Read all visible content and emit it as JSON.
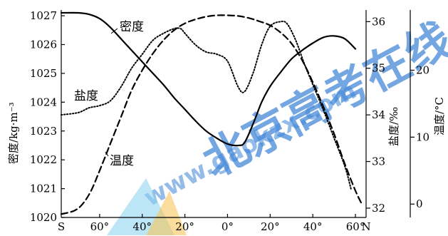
{
  "chart_data": {
    "type": "line",
    "x": [
      -70,
      -60,
      -50,
      -40,
      -30,
      -20,
      -10,
      0,
      10,
      20,
      30,
      40,
      50,
      60
    ],
    "xlim": [
      -78,
      65
    ],
    "x_ticks": [
      {
        "value": -78,
        "label": "S"
      },
      {
        "value": -60,
        "label": "60°"
      },
      {
        "value": -40,
        "label": "40°"
      },
      {
        "value": -20,
        "label": "20°"
      },
      {
        "value": 0,
        "label": "0°"
      },
      {
        "value": 20,
        "label": "20°"
      },
      {
        "value": 40,
        "label": "40°"
      },
      {
        "value": 60,
        "label": "60°"
      },
      {
        "value": 65,
        "label": "N"
      }
    ],
    "axes": {
      "density": {
        "label": "密度/kg·m⁻³",
        "ylim": [
          1020,
          1027.2
        ],
        "ticks": [
          "1020",
          "1021",
          "1022",
          "1023",
          "1024",
          "1025",
          "1026",
          "1027"
        ]
      },
      "salinity": {
        "label": "盐度/‰",
        "ylim": [
          31.8,
          36.25
        ],
        "ticks": [
          "32",
          "33",
          "34",
          "35",
          "36"
        ]
      },
      "temperature": {
        "label": "温度/°C",
        "ylim": [
          -2,
          29
        ],
        "ticks": [
          "0",
          "10",
          "20"
        ]
      }
    },
    "series": [
      {
        "name": "密度",
        "axis": "density",
        "style": "solid",
        "points": [
          [
            -78,
            1027.1
          ],
          [
            -70,
            1027.1
          ],
          [
            -65,
            1027.05
          ],
          [
            -60,
            1026.9
          ],
          [
            -55,
            1026.6
          ],
          [
            -50,
            1026.2
          ],
          [
            -45,
            1025.8
          ],
          [
            -40,
            1025.4
          ],
          [
            -35,
            1025.0
          ],
          [
            -30,
            1024.6
          ],
          [
            -25,
            1024.15
          ],
          [
            -20,
            1023.75
          ],
          [
            -15,
            1023.35
          ],
          [
            -10,
            1023.0
          ],
          [
            -5,
            1022.75
          ],
          [
            0,
            1022.55
          ],
          [
            5,
            1022.5
          ],
          [
            8,
            1022.6
          ],
          [
            12,
            1023.25
          ],
          [
            16,
            1024.0
          ],
          [
            20,
            1024.55
          ],
          [
            25,
            1025.05
          ],
          [
            30,
            1025.5
          ],
          [
            35,
            1025.8
          ],
          [
            40,
            1026.05
          ],
          [
            45,
            1026.25
          ],
          [
            50,
            1026.3
          ],
          [
            55,
            1026.2
          ],
          [
            60,
            1025.85
          ]
        ]
      },
      {
        "name": "盐度",
        "axis": "salinity",
        "style": "dotted",
        "points": [
          [
            -78,
            34.0
          ],
          [
            -70,
            34.05
          ],
          [
            -65,
            34.15
          ],
          [
            -60,
            34.2
          ],
          [
            -55,
            34.3
          ],
          [
            -50,
            34.6
          ],
          [
            -45,
            35.0
          ],
          [
            -40,
            35.3
          ],
          [
            -35,
            35.6
          ],
          [
            -30,
            35.75
          ],
          [
            -25,
            35.85
          ],
          [
            -22,
            35.85
          ],
          [
            -20,
            35.75
          ],
          [
            -15,
            35.5
          ],
          [
            -10,
            35.35
          ],
          [
            -5,
            35.3
          ],
          [
            0,
            35.15
          ],
          [
            5,
            34.6
          ],
          [
            8,
            34.5
          ],
          [
            12,
            34.9
          ],
          [
            16,
            35.5
          ],
          [
            20,
            35.9
          ],
          [
            25,
            36.0
          ],
          [
            28,
            35.95
          ],
          [
            32,
            35.6
          ],
          [
            36,
            35.1
          ],
          [
            40,
            34.65
          ],
          [
            45,
            34.1
          ],
          [
            50,
            33.5
          ],
          [
            55,
            32.9
          ],
          [
            58,
            32.4
          ]
        ]
      },
      {
        "name": "温度",
        "axis": "temperature",
        "style": "dashed",
        "points": [
          [
            -78,
            -1.5
          ],
          [
            -72,
            -1.0
          ],
          [
            -68,
            0
          ],
          [
            -64,
            2
          ],
          [
            -60,
            5
          ],
          [
            -55,
            9
          ],
          [
            -50,
            13
          ],
          [
            -45,
            17
          ],
          [
            -40,
            20
          ],
          [
            -35,
            22.5
          ],
          [
            -30,
            24.5
          ],
          [
            -25,
            26
          ],
          [
            -20,
            27
          ],
          [
            -15,
            27.6
          ],
          [
            -10,
            28
          ],
          [
            -5,
            28.2
          ],
          [
            0,
            28.2
          ],
          [
            5,
            28.1
          ],
          [
            10,
            27.8
          ],
          [
            15,
            27.3
          ],
          [
            20,
            26.7
          ],
          [
            25,
            25.6
          ],
          [
            30,
            24
          ],
          [
            35,
            21.5
          ],
          [
            40,
            18.2
          ],
          [
            45,
            14.5
          ],
          [
            50,
            10.5
          ],
          [
            55,
            6
          ],
          [
            60,
            2
          ],
          [
            63,
            0
          ]
        ]
      }
    ],
    "series_labels": [
      "密度",
      "盐度",
      "温度"
    ]
  },
  "watermark": {
    "text": "北京高考在线",
    "url": "www.gaokzx.com"
  }
}
